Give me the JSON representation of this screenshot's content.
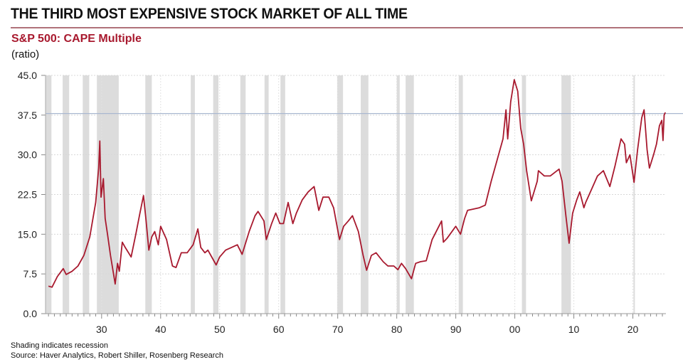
{
  "header": {
    "title": "THE THIRD MOST EXPENSIVE STOCK MARKET OF ALL TIME"
  },
  "footer": {
    "note": "Shading indicates recession",
    "source": "Source: Haver Analytics, Robert Shiller, Rosenberg Research"
  },
  "chart_data": {
    "type": "line",
    "title": "S&P 500: CAPE Multiple",
    "ylabel": "(ratio)",
    "xlim": [
      1920.5,
      2025.6
    ],
    "ylim": [
      0,
      45
    ],
    "yticks": [
      "0.0",
      "7.5",
      "15.0",
      "22.5",
      "30.0",
      "37.5",
      "45.0"
    ],
    "xticks": [
      {
        "year": 1930,
        "label": "30"
      },
      {
        "year": 1940,
        "label": "40"
      },
      {
        "year": 1950,
        "label": "50"
      },
      {
        "year": 1960,
        "label": "60"
      },
      {
        "year": 1970,
        "label": "70"
      },
      {
        "year": 1980,
        "label": "80"
      },
      {
        "year": 1990,
        "label": "90"
      },
      {
        "year": 2000,
        "label": "00"
      },
      {
        "year": 2010,
        "label": "10"
      },
      {
        "year": 2020,
        "label": "20"
      }
    ],
    "grid": true,
    "reference_line": {
      "value": 37.8,
      "color": "#a9b8d0"
    },
    "line_color": "#a8192e",
    "shading_color": "#dcdcdc",
    "recessions": [
      [
        1920.5,
        1921.5
      ],
      [
        1923.4,
        1924.5
      ],
      [
        1926.8,
        1927.9
      ],
      [
        1929.2,
        1932.9
      ],
      [
        1937.4,
        1938.5
      ],
      [
        1945.1,
        1945.8
      ],
      [
        1948.9,
        1949.8
      ],
      [
        1953.5,
        1954.4
      ],
      [
        1957.6,
        1958.3
      ],
      [
        1960.3,
        1961.1
      ],
      [
        1969.9,
        1970.9
      ],
      [
        1973.9,
        1975.2
      ],
      [
        1980.0,
        1980.5
      ],
      [
        1981.5,
        1982.9
      ],
      [
        1990.5,
        1991.2
      ],
      [
        2001.2,
        2001.9
      ],
      [
        2007.9,
        2009.5
      ],
      [
        2020.1,
        2020.3
      ]
    ],
    "series": [
      {
        "x": [
          1921.0,
          1921.6,
          1922.5,
          1923.5,
          1924.0,
          1925.0,
          1926.0,
          1927.0,
          1928.0,
          1929.0,
          1929.5,
          1929.7,
          1929.9,
          1930.3,
          1930.6,
          1931.0,
          1931.5,
          1932.3,
          1932.7,
          1933.0,
          1933.5,
          1934.0,
          1935.0,
          1935.8,
          1936.5,
          1937.1,
          1937.5,
          1938.0,
          1938.5,
          1939.0,
          1939.6,
          1940.0,
          1941.0,
          1942.0,
          1942.6,
          1943.5,
          1944.5,
          1945.5,
          1946.3,
          1946.8,
          1947.5,
          1948.0,
          1949.4,
          1950.0,
          1951.0,
          1952.0,
          1953.0,
          1953.8,
          1955.0,
          1956.0,
          1956.5,
          1957.5,
          1957.9,
          1958.8,
          1959.5,
          1960.2,
          1960.8,
          1961.6,
          1962.4,
          1963.0,
          1964.0,
          1965.0,
          1966.0,
          1966.8,
          1967.5,
          1968.5,
          1969.3,
          1970.3,
          1971.0,
          1971.8,
          1972.5,
          1973.5,
          1974.3,
          1974.9,
          1975.7,
          1976.5,
          1977.7,
          1978.5,
          1979.5,
          1980.2,
          1980.8,
          1981.5,
          1982.5,
          1983.2,
          1984.0,
          1985.0,
          1986.0,
          1987.6,
          1987.9,
          1988.5,
          1990.0,
          1990.8,
          1991.5,
          1992.0,
          1994.0,
          1995.0,
          1996.0,
          1997.0,
          1998.0,
          1998.5,
          1998.8,
          1999.3,
          1999.9,
          2000.5,
          2001.0,
          2001.5,
          2002.0,
          2002.8,
          2003.8,
          2004.0,
          2005.0,
          2006.0,
          2007.5,
          2008.0,
          2008.7,
          2009.2,
          2009.8,
          2010.5,
          2011.0,
          2011.7,
          2012.0,
          2013.0,
          2014.0,
          2015.0,
          2016.1,
          2017.0,
          2018.0,
          2018.6,
          2018.9,
          2019.5,
          2020.2,
          2020.8,
          2021.5,
          2021.9,
          2022.4,
          2022.8,
          2023.5,
          2024.0,
          2024.5,
          2024.9,
          2025.1,
          2025.3,
          2025.5
        ],
        "y": [
          5.2,
          5.0,
          7.0,
          8.5,
          7.4,
          8.0,
          9.0,
          11.0,
          14.5,
          21.0,
          27.5,
          32.6,
          22.0,
          25.5,
          18.0,
          15.0,
          11.0,
          5.6,
          9.5,
          8.0,
          13.5,
          12.5,
          10.7,
          15.0,
          19.0,
          22.3,
          18.0,
          12.0,
          14.5,
          15.5,
          13.0,
          16.5,
          14.0,
          9.0,
          8.7,
          11.5,
          11.5,
          13.0,
          16.0,
          12.5,
          11.5,
          12.0,
          9.2,
          10.7,
          12.0,
          12.5,
          13.0,
          11.2,
          15.5,
          18.5,
          19.3,
          17.5,
          14.0,
          17.0,
          19.0,
          17.0,
          17.0,
          21.0,
          17.0,
          19.0,
          21.5,
          23.0,
          24.0,
          19.5,
          22.0,
          22.0,
          20.0,
          14.0,
          16.5,
          17.5,
          18.5,
          15.5,
          11.0,
          8.2,
          11.0,
          11.5,
          9.8,
          9.0,
          9.0,
          8.3,
          9.5,
          8.5,
          6.6,
          9.5,
          9.8,
          10.0,
          14.0,
          17.5,
          13.5,
          14.2,
          16.5,
          15.0,
          18.0,
          19.5,
          20.0,
          20.5,
          25.0,
          29.0,
          33.0,
          38.5,
          33.0,
          40.0,
          44.2,
          42.0,
          35.0,
          32.0,
          27.0,
          21.3,
          25.0,
          27.0,
          26.0,
          26.0,
          27.3,
          25.0,
          18.0,
          13.3,
          19.0,
          21.5,
          23.0,
          20.0,
          21.0,
          23.5,
          26.0,
          27.0,
          24.0,
          28.0,
          33.0,
          32.0,
          28.5,
          30.0,
          24.8,
          31.0,
          37.0,
          38.5,
          31.0,
          27.5,
          30.0,
          32.0,
          35.5,
          36.5,
          32.7,
          37.5,
          38.0
        ]
      }
    ]
  }
}
